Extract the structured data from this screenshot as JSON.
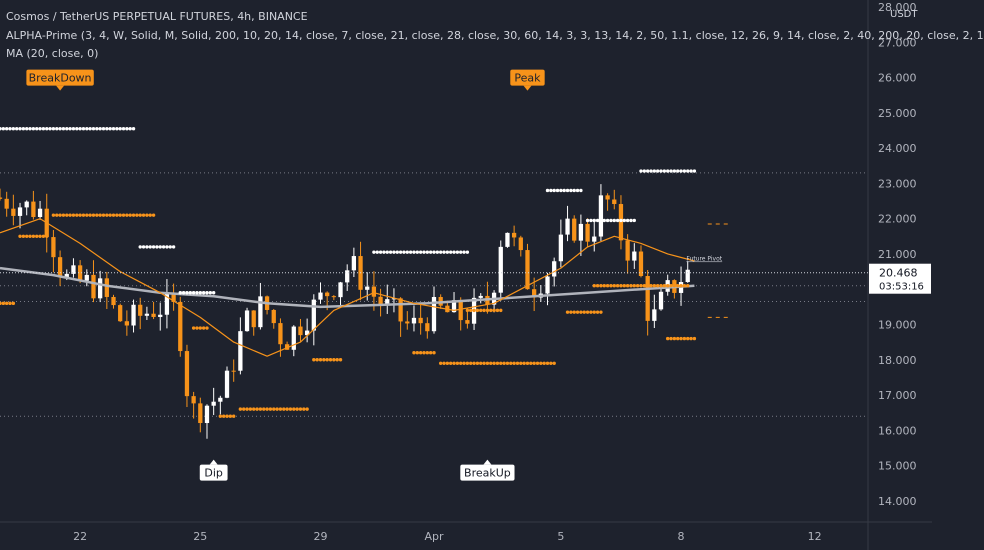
{
  "header": {
    "symbol_line": "Cosmos / TetherUS PERPETUAL FUTURES, 4h, BINANCE",
    "indicator_line": "ALPHA-Prime (3, 4, W, Solid, M, Solid, 200, 10, 20, 14, close, 7, close, 21, close, 28, close, 30, 60, 14, 3, 3, 13, 14, 2, 50, 1.1, close, 12, 26, 9, 14, close, 2, 40, 200, 20, close, 2, 1",
    "ma_line": "MA (20, close, 0)"
  },
  "price_axis": {
    "currency": "USDT",
    "last_price": "20.468",
    "countdown": "03:53:16"
  },
  "colors": {
    "background": "#1e222d",
    "up_candle": "#ffffff",
    "down_candle": "#f7931a",
    "ma_fast": "#f7931a",
    "ma_slow": "#b0b3bb",
    "label_orange": "#f7931a",
    "label_white": "#ffffff"
  },
  "chart_data": {
    "type": "candlestick",
    "ylim": [
      13.4,
      28.2
    ],
    "y_ticks": [
      14,
      15,
      16,
      17,
      18,
      19,
      20,
      21,
      22,
      23,
      24,
      25,
      26,
      27,
      28
    ],
    "y_tick_labels": [
      "14.000",
      "15.000",
      "16.000",
      "17.000",
      "18.000",
      "19.000",
      "20.000",
      "21.000",
      "22.000",
      "23.000",
      "24.000",
      "25.000",
      "26.000",
      "27.000",
      "28.000"
    ],
    "bar_range": [
      0,
      130
    ],
    "x_ticks": [
      {
        "bar": 12,
        "label": "22"
      },
      {
        "bar": 30,
        "label": "25"
      },
      {
        "bar": 48,
        "label": "29"
      },
      {
        "bar": 65,
        "label": "Apr"
      },
      {
        "bar": 84,
        "label": "5"
      },
      {
        "bar": 102,
        "label": "8"
      },
      {
        "bar": 122,
        "label": "12"
      }
    ],
    "horizontal_levels": [
      23.3,
      20.1,
      19.65,
      16.4
    ],
    "key_points": [
      {
        "bar": 0,
        "price": 22.6
      },
      {
        "bar": 7,
        "price": 22.2
      },
      {
        "bar": 10,
        "price": 20.3
      },
      {
        "bar": 15,
        "price": 20.1
      },
      {
        "bar": 19,
        "price": 19.0
      },
      {
        "bar": 24,
        "price": 19.5
      },
      {
        "bar": 27,
        "price": 19.4
      },
      {
        "bar": 29,
        "price": 16.5
      },
      {
        "bar": 34,
        "price": 17.0
      },
      {
        "bar": 37,
        "price": 19.0
      },
      {
        "bar": 40,
        "price": 19.6
      },
      {
        "bar": 43,
        "price": 18.5
      },
      {
        "bar": 48,
        "price": 19.6
      },
      {
        "bar": 53,
        "price": 20.7
      },
      {
        "bar": 57,
        "price": 19.7
      },
      {
        "bar": 62,
        "price": 18.9
      },
      {
        "bar": 66,
        "price": 19.4
      },
      {
        "bar": 70,
        "price": 19.2
      },
      {
        "bar": 74,
        "price": 19.7
      },
      {
        "bar": 76,
        "price": 22.0
      },
      {
        "bar": 80,
        "price": 20.0
      },
      {
        "bar": 83,
        "price": 20.6
      },
      {
        "bar": 86,
        "price": 21.8
      },
      {
        "bar": 89,
        "price": 21.5
      },
      {
        "bar": 91,
        "price": 22.7
      },
      {
        "bar": 94,
        "price": 21.3
      },
      {
        "bar": 96,
        "price": 20.7
      },
      {
        "bar": 98,
        "price": 19.0
      },
      {
        "bar": 100,
        "price": 19.8
      },
      {
        "bar": 103,
        "price": 20.45
      }
    ],
    "ma_fast": [
      {
        "bar": 0,
        "price": 21.6
      },
      {
        "bar": 6,
        "price": 22.0
      },
      {
        "bar": 12,
        "price": 21.3
      },
      {
        "bar": 18,
        "price": 20.5
      },
      {
        "bar": 24,
        "price": 19.9
      },
      {
        "bar": 30,
        "price": 19.2
      },
      {
        "bar": 35,
        "price": 18.5
      },
      {
        "bar": 40,
        "price": 18.1
      },
      {
        "bar": 45,
        "price": 18.5
      },
      {
        "bar": 50,
        "price": 19.4
      },
      {
        "bar": 56,
        "price": 19.9
      },
      {
        "bar": 62,
        "price": 19.6
      },
      {
        "bar": 68,
        "price": 19.4
      },
      {
        "bar": 74,
        "price": 19.6
      },
      {
        "bar": 78,
        "price": 20.0
      },
      {
        "bar": 84,
        "price": 20.6
      },
      {
        "bar": 88,
        "price": 21.2
      },
      {
        "bar": 92,
        "price": 21.5
      },
      {
        "bar": 96,
        "price": 21.3
      },
      {
        "bar": 100,
        "price": 21.0
      },
      {
        "bar": 104,
        "price": 20.8
      }
    ],
    "ma_slow": [
      {
        "bar": 0,
        "price": 20.6
      },
      {
        "bar": 8,
        "price": 20.4
      },
      {
        "bar": 16,
        "price": 20.1
      },
      {
        "bar": 24,
        "price": 19.9
      },
      {
        "bar": 32,
        "price": 19.8
      },
      {
        "bar": 40,
        "price": 19.6
      },
      {
        "bar": 48,
        "price": 19.5
      },
      {
        "bar": 56,
        "price": 19.55
      },
      {
        "bar": 64,
        "price": 19.6
      },
      {
        "bar": 72,
        "price": 19.7
      },
      {
        "bar": 80,
        "price": 19.8
      },
      {
        "bar": 88,
        "price": 19.9
      },
      {
        "bar": 96,
        "price": 20.0
      },
      {
        "bar": 104,
        "price": 20.1
      }
    ],
    "dot_levels": [
      {
        "from": 0,
        "to": 20,
        "price": 24.55,
        "color": "#ffffff"
      },
      {
        "from": 8,
        "to": 23,
        "price": 22.1,
        "color": "#f7931a"
      },
      {
        "from": 3,
        "to": 7,
        "price": 21.5,
        "color": "#f7931a"
      },
      {
        "from": 21,
        "to": 26,
        "price": 21.2,
        "color": "#ffffff"
      },
      {
        "from": 0,
        "to": 2,
        "price": 19.6,
        "color": "#f7931a"
      },
      {
        "from": 27,
        "to": 32,
        "price": 19.9,
        "color": "#ffffff"
      },
      {
        "from": 29,
        "to": 31,
        "price": 18.9,
        "color": "#f7931a"
      },
      {
        "from": 33,
        "to": 35,
        "price": 16.4,
        "color": "#f7931a"
      },
      {
        "from": 36,
        "to": 46,
        "price": 16.6,
        "color": "#f7931a"
      },
      {
        "from": 47,
        "to": 51,
        "price": 18.0,
        "color": "#f7931a"
      },
      {
        "from": 56,
        "to": 70,
        "price": 21.05,
        "color": "#ffffff"
      },
      {
        "from": 62,
        "to": 65,
        "price": 18.2,
        "color": "#f7931a"
      },
      {
        "from": 66,
        "to": 83,
        "price": 17.9,
        "color": "#f7931a"
      },
      {
        "from": 70,
        "to": 75,
        "price": 19.4,
        "color": "#f7931a"
      },
      {
        "from": 82,
        "to": 87,
        "price": 22.8,
        "color": "#ffffff"
      },
      {
        "from": 88,
        "to": 95,
        "price": 21.95,
        "color": "#ffffff"
      },
      {
        "from": 89,
        "to": 103,
        "price": 20.1,
        "color": "#f7931a"
      },
      {
        "from": 85,
        "to": 90,
        "price": 19.35,
        "color": "#f7931a"
      },
      {
        "from": 96,
        "to": 104,
        "price": 23.35,
        "color": "#ffffff"
      },
      {
        "from": 100,
        "to": 104,
        "price": 18.6,
        "color": "#f7931a"
      }
    ],
    "dash_levels": [
      {
        "from": 106,
        "to": 109,
        "price": 21.85
      },
      {
        "from": 106,
        "to": 109,
        "price": 19.2
      }
    ],
    "annotations": [
      {
        "text": "BreakDown",
        "bar": 9,
        "price": 26.0,
        "style": "orange"
      },
      {
        "text": "Peak",
        "bar": 79,
        "price": 26.0,
        "style": "orange"
      },
      {
        "text": "Dip",
        "bar": 32,
        "price": 14.8,
        "style": "white"
      },
      {
        "text": "BreakUp",
        "bar": 73,
        "price": 14.8,
        "style": "white"
      }
    ],
    "side_label": {
      "text": "Future Pivot",
      "bar": 104,
      "price": 20.9
    }
  }
}
